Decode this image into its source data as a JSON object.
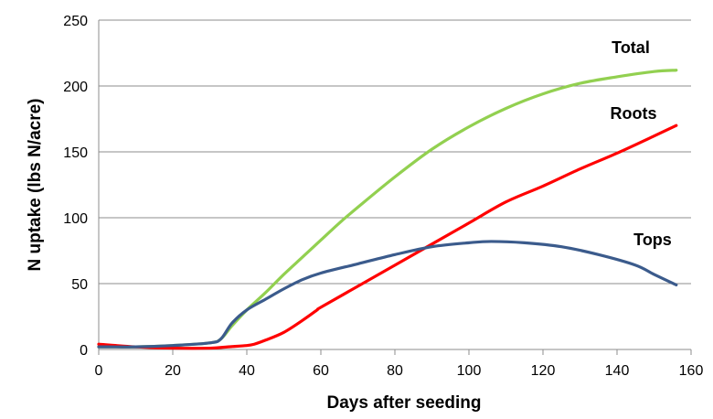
{
  "chart_data": {
    "type": "line",
    "title": "",
    "xlabel": "Days after seeding",
    "ylabel": "N uptake (lbs N/acre)",
    "xlim": [
      0,
      160
    ],
    "ylim": [
      0,
      250
    ],
    "xticks": [
      0,
      20,
      40,
      60,
      80,
      100,
      120,
      140,
      160
    ],
    "yticks": [
      0,
      50,
      100,
      150,
      200,
      250
    ],
    "grid": "horizontal",
    "legend": "none",
    "series": [
      {
        "name": "Total",
        "color": "#92d050",
        "x": [
          0,
          10,
          20,
          30,
          33,
          36,
          40,
          45,
          50,
          55,
          60,
          65,
          70,
          80,
          90,
          100,
          110,
          120,
          130,
          140,
          150,
          156
        ],
        "y": [
          2,
          2,
          3,
          5,
          8,
          18,
          30,
          43,
          57,
          70,
          83,
          96,
          108,
          131,
          152,
          169,
          183,
          194,
          202,
          207,
          211,
          212
        ]
      },
      {
        "name": "Roots",
        "color": "#ff0000",
        "x": [
          0,
          10,
          20,
          30,
          35,
          40,
          42,
          45,
          50,
          55,
          59,
          60,
          70,
          80,
          90,
          100,
          110,
          120,
          130,
          140,
          150,
          156
        ],
        "y": [
          4,
          2,
          1,
          1,
          2,
          3,
          4,
          7,
          13,
          22,
          30,
          32,
          48,
          64,
          80,
          96,
          112,
          124,
          137,
          149,
          162,
          170
        ]
      },
      {
        "name": "Tops",
        "color": "#3b5b8c",
        "x": [
          0,
          10,
          20,
          30,
          33,
          36,
          40,
          45,
          50,
          55,
          60,
          70,
          80,
          90,
          100,
          106,
          115,
          125,
          135,
          145,
          150,
          156
        ],
        "y": [
          2,
          2,
          3,
          5,
          8,
          20,
          30,
          38,
          46,
          53,
          58,
          65,
          72,
          78,
          81,
          82,
          81,
          78,
          72,
          64,
          57,
          49
        ]
      }
    ]
  }
}
